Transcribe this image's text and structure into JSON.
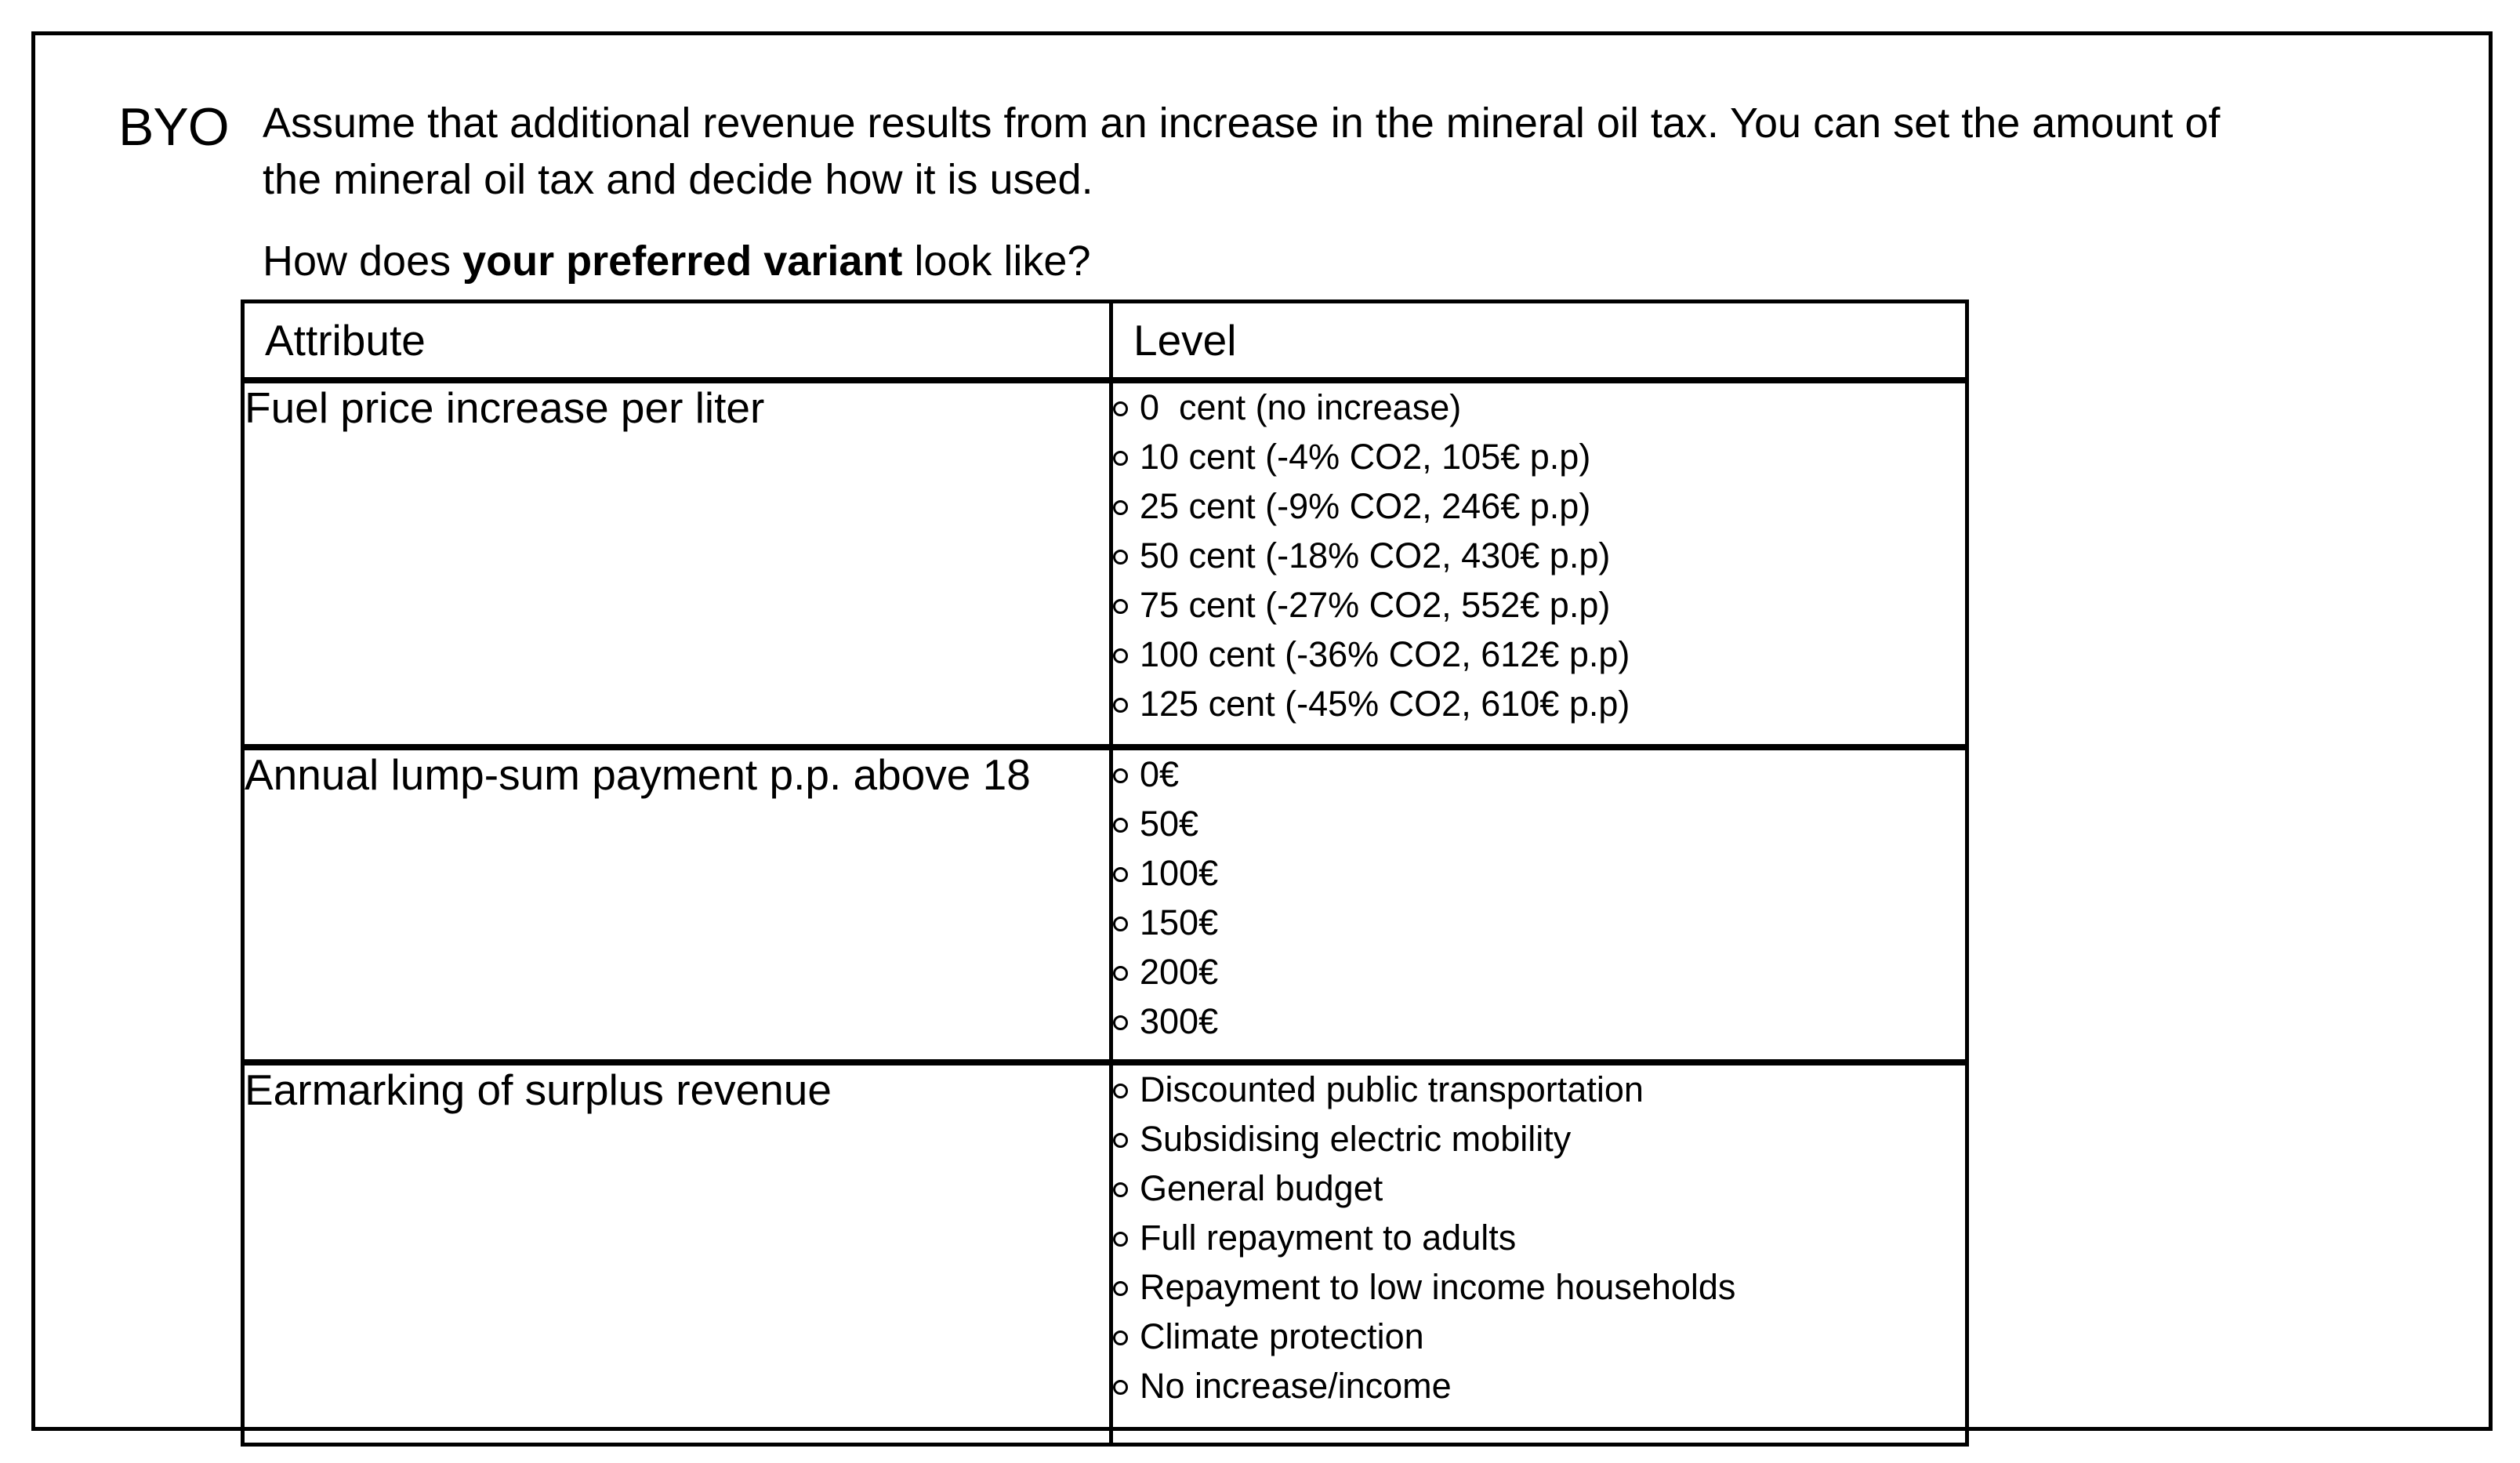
{
  "colors": {
    "background": "#ffffff",
    "text": "#000000",
    "border": "#000000"
  },
  "icons": {
    "radio": "empty-circle-radio"
  },
  "page": {
    "id_label": "BYO",
    "intro_line1": "Assume that additional revenue results from an increase in the mineral oil tax. You can set the amount of",
    "intro_line2": "the mineral oil tax and decide how it is used.",
    "question_prefix": "How does ",
    "question_bold": "your preferred variant",
    "question_suffix": " look like?"
  },
  "table": {
    "headers": {
      "attribute": "Attribute",
      "level": "Level"
    },
    "rows": [
      {
        "attribute": "Fuel price increase per liter",
        "levels": [
          "0  cent (no increase)",
          "10 cent (-4% CO2, 105€ p.p)",
          "25 cent (-9% CO2, 246€ p.p)",
          "50 cent (-18% CO2, 430€ p.p)",
          "75 cent (-27% CO2, 552€ p.p)",
          "100 cent (-36% CO2, 612€ p.p)",
          "125 cent (-45% CO2, 610€ p.p)"
        ]
      },
      {
        "attribute": "Annual lump-sum payment p.p. above 18",
        "levels": [
          "0€",
          "50€",
          "100€",
          "150€",
          "200€",
          "300€"
        ]
      },
      {
        "attribute": "Earmarking of surplus revenue",
        "levels": [
          "Discounted public transportation",
          "Subsidising electric mobility",
          "General budget",
          "Full repayment to adults",
          "Repayment to low income households",
          "Climate protection",
          "No increase/income"
        ]
      }
    ]
  }
}
